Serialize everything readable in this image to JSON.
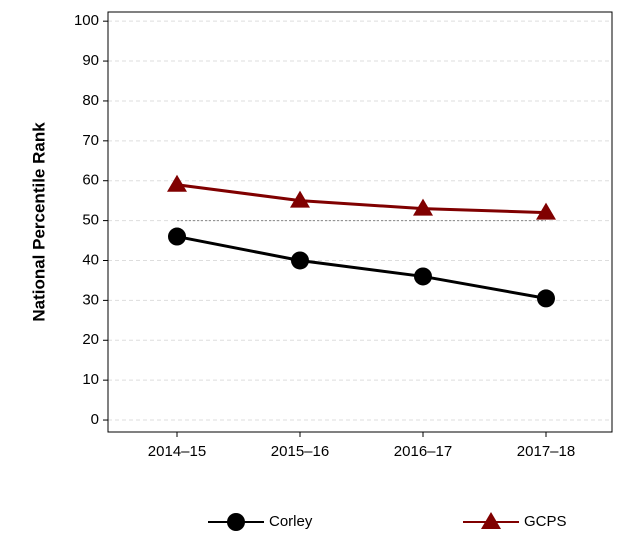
{
  "chart_data": {
    "type": "line",
    "y_label": "National Percentile Rank",
    "categories": [
      "2014–15",
      "2015–16",
      "2016–17",
      "2017–18"
    ],
    "series": [
      {
        "name": "Corley",
        "color": "#000000",
        "marker": "circle",
        "values": [
          46,
          40,
          36,
          30.5
        ]
      },
      {
        "name": "GCPS",
        "color": "#800000",
        "marker": "triangle",
        "values": [
          59,
          55,
          53,
          52
        ]
      }
    ],
    "reference_line": 50,
    "ylim": [
      -3,
      102.3
    ],
    "yticks": [
      0,
      10,
      20,
      30,
      40,
      50,
      60,
      70,
      80,
      90,
      100
    ],
    "grid": true
  }
}
